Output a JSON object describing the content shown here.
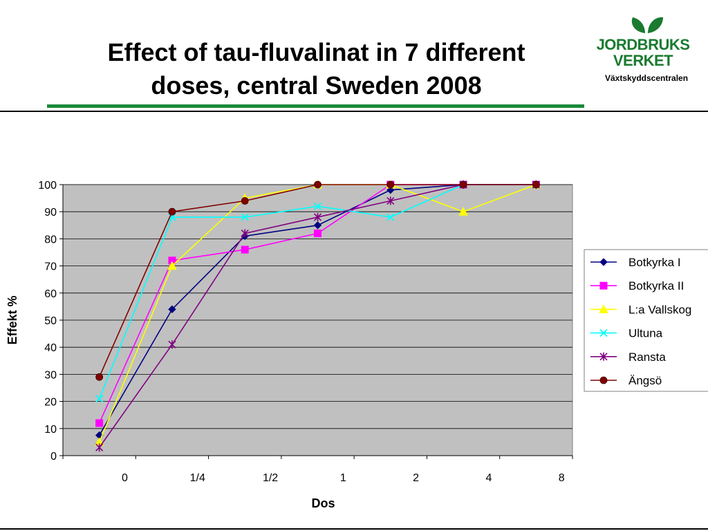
{
  "slide": {
    "title_lines": [
      "Effect of tau-fluvalinat in 7 different",
      "doses, central Sweden 2008"
    ],
    "logo_line1": "JORDBRUKS",
    "logo_line2": "VERKET",
    "logo_subtitle": "Växtskyddscentralen"
  },
  "colors": {
    "accent_underline": "#1a8a3a",
    "logo_green": "#1a7a30",
    "plot_background": "#c0c0c0"
  },
  "chart_data": {
    "type": "line",
    "title": "",
    "xlabel": "Dos",
    "ylabel": "Effekt %",
    "categories": [
      "0",
      "1/4",
      "1/2",
      "1",
      "2",
      "4",
      "8"
    ],
    "ylim": [
      0,
      100
    ],
    "yticks": [
      0,
      10,
      20,
      30,
      40,
      50,
      60,
      70,
      80,
      90,
      100
    ],
    "grid": "horizontal",
    "legend_position": "right",
    "series": [
      {
        "name": "Botkyrka I",
        "color": "#000080",
        "marker": "diamond",
        "values": [
          7.5,
          54,
          81,
          85,
          98,
          100,
          100
        ]
      },
      {
        "name": "Botkyrka II",
        "color": "#ff00ff",
        "marker": "square",
        "values": [
          12,
          72,
          76,
          82,
          100,
          100,
          100
        ]
      },
      {
        "name": "L:a Vallskog",
        "color": "#ffff00",
        "marker": "triangle",
        "values": [
          5,
          70,
          95,
          100,
          100,
          90,
          100
        ]
      },
      {
        "name": "Ultuna",
        "color": "#00ffff",
        "marker": "x",
        "values": [
          21,
          88,
          88,
          92,
          88,
          100,
          100
        ]
      },
      {
        "name": "Ransta",
        "color": "#800080",
        "marker": "star",
        "values": [
          3,
          41,
          82,
          88,
          94,
          100,
          100
        ]
      },
      {
        "name": "Ängsö",
        "color": "#800000",
        "marker": "circle",
        "values": [
          29,
          90,
          94,
          100,
          100,
          100,
          100
        ]
      }
    ]
  }
}
